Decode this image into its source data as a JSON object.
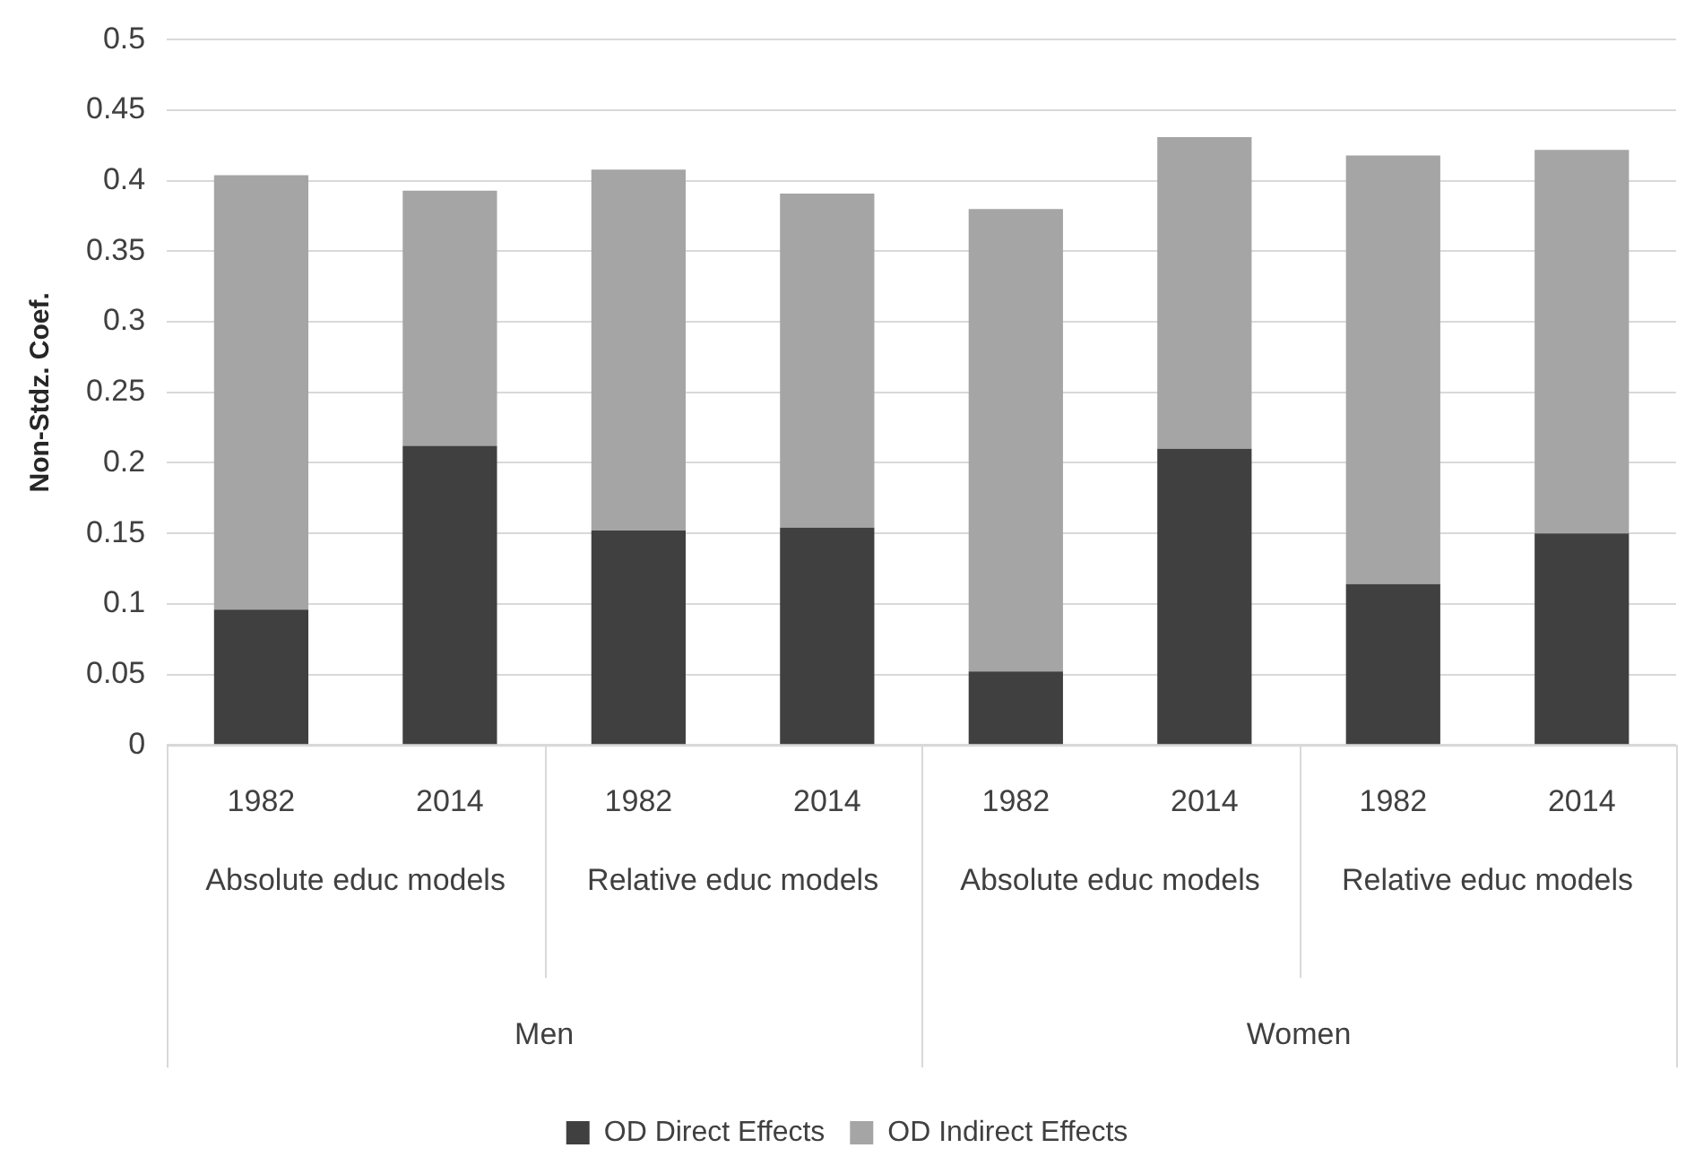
{
  "chart_data": {
    "type": "bar",
    "stacked": true,
    "ylabel": "Non-Stdz. Coef.",
    "categories": [
      "1982",
      "2014",
      "1982",
      "2014",
      "1982",
      "2014",
      "1982",
      "2014"
    ],
    "series": [
      {
        "name": "OD Direct Effects",
        "color": "#404040",
        "values": [
          0.096,
          0.212,
          0.152,
          0.154,
          0.052,
          0.21,
          0.114,
          0.15
        ]
      },
      {
        "name": "OD Indirect Effects",
        "color": "#a5a5a5",
        "values": [
          0.308,
          0.181,
          0.256,
          0.237,
          0.328,
          0.221,
          0.304,
          0.272
        ]
      }
    ],
    "annotations": [
      "Absolute educ models",
      "Relative educ models",
      "Absolute educ models",
      "Relative educ models",
      "Men",
      "Women"
    ],
    "ylim": [
      0,
      0.5
    ],
    "yticks": [
      0,
      0.05,
      0.1,
      0.15,
      0.2,
      0.25,
      0.3,
      0.35,
      0.4,
      0.45,
      0.5
    ],
    "grid": "y",
    "legend": "bottom"
  }
}
